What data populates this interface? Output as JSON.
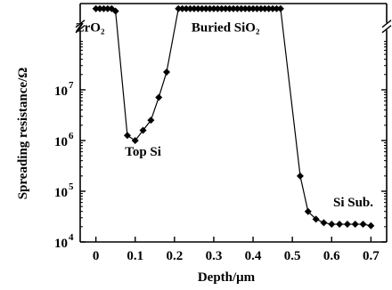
{
  "chart_data": {
    "type": "line",
    "title": "",
    "xlabel": "Depth/μm",
    "ylabel": "Spreading resistance/Ω",
    "yscale": "log",
    "xlim": [
      -0.04,
      0.74
    ],
    "ylim_exponent": [
      4,
      8.7
    ],
    "grid": false,
    "axis_break_on_y_at_exponent": 8.25,
    "x_ticks": [
      0,
      0.1,
      0.2,
      0.3,
      0.4,
      0.5,
      0.6,
      0.7
    ],
    "x_tick_labels": [
      "0",
      "0.1",
      "0.2",
      "0.3",
      "0.4",
      "0.5",
      "0.6",
      "0.7"
    ],
    "y_ticks_exponent": [
      4,
      5,
      6,
      7
    ],
    "y_tick_base": "10",
    "y_tick_exponents": [
      "4",
      "5",
      "6",
      "7"
    ],
    "series": [
      {
        "marker": "diamond",
        "color": "#000000",
        "x": [
          0.0,
          0.01,
          0.02,
          0.03,
          0.04,
          0.05,
          0.08,
          0.1,
          0.12,
          0.14,
          0.16,
          0.18,
          0.21,
          0.22,
          0.23,
          0.24,
          0.25,
          0.26,
          0.27,
          0.28,
          0.29,
          0.3,
          0.31,
          0.32,
          0.33,
          0.34,
          0.35,
          0.36,
          0.37,
          0.38,
          0.39,
          0.4,
          0.41,
          0.42,
          0.43,
          0.44,
          0.45,
          0.46,
          0.47,
          0.52,
          0.54,
          0.56,
          0.58,
          0.6,
          0.62,
          0.64,
          0.66,
          0.68,
          0.7
        ],
        "y_exponent": [
          8.6,
          8.6,
          8.6,
          8.6,
          8.6,
          8.55,
          6.1,
          6.0,
          6.2,
          6.4,
          6.85,
          7.35,
          8.6,
          8.6,
          8.6,
          8.6,
          8.6,
          8.6,
          8.6,
          8.6,
          8.6,
          8.6,
          8.6,
          8.6,
          8.6,
          8.6,
          8.6,
          8.6,
          8.6,
          8.6,
          8.6,
          8.6,
          8.6,
          8.6,
          8.6,
          8.6,
          8.6,
          8.6,
          8.6,
          5.3,
          4.6,
          4.45,
          4.38,
          4.35,
          4.35,
          4.35,
          4.35,
          4.35,
          4.32
        ]
      }
    ],
    "annotations": [
      {
        "text": "ZrO₂",
        "x": -0.015,
        "y_exponent": 8.15
      },
      {
        "text": "Buried SiO₂",
        "x": 0.33,
        "y_exponent": 8.15
      },
      {
        "text": "Top Si",
        "x": 0.12,
        "y_exponent": 5.7
      },
      {
        "text": "Si Sub.",
        "x": 0.655,
        "y_exponent": 4.7
      }
    ]
  }
}
